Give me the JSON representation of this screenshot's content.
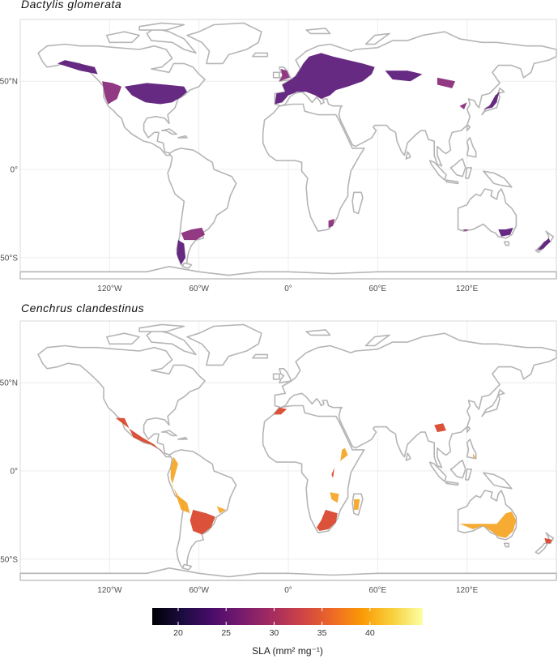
{
  "panels": [
    {
      "title": "Dactylis glomerata",
      "color_low": "#5a1a7a",
      "color_high": "#8a2a7a",
      "lat_labels": [
        "50°N",
        "0°",
        "50°S"
      ],
      "lon_labels": [
        "120°W",
        "60°W",
        "0°",
        "60°E",
        "120°E"
      ]
    },
    {
      "title": "Cenchrus clandestinus",
      "color_low": "#d8442a",
      "color_high": "#f5a623",
      "lat_labels": [
        "50°N",
        "0°",
        "50°S"
      ],
      "lon_labels": [
        "120°W",
        "60°W",
        "0°",
        "60°E",
        "120°E"
      ]
    }
  ],
  "legend": {
    "title": "SLA (mm² mg⁻¹)",
    "ticks": [
      "20",
      "25",
      "30",
      "35",
      "40"
    ],
    "gradient": [
      "#000004",
      "#1b0c41",
      "#4a0c6b",
      "#781c6d",
      "#a52c60",
      "#cf4446",
      "#ed6925",
      "#fb9b06",
      "#f7d13d",
      "#fcffa4"
    ]
  }
}
